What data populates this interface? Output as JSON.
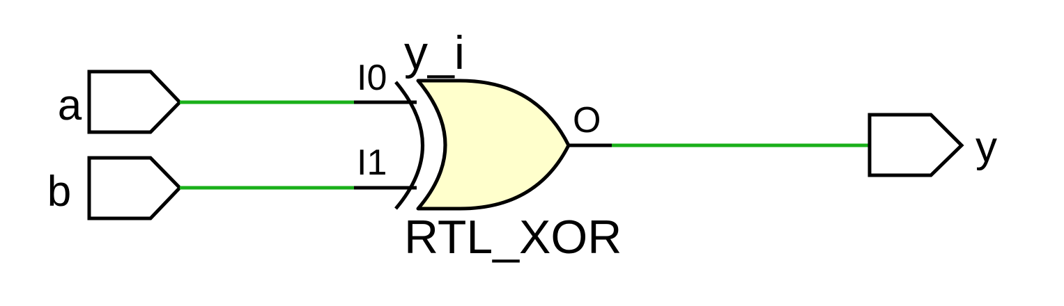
{
  "ports": {
    "a": {
      "label": "a",
      "direction": "input"
    },
    "b": {
      "label": "b",
      "direction": "input"
    },
    "y": {
      "label": "y",
      "direction": "output"
    }
  },
  "cell": {
    "instance_name": "y_i",
    "type_label": "RTL_XOR",
    "pins": {
      "i0": "I0",
      "i1": "I1",
      "o": "O"
    }
  },
  "colors": {
    "net": "#1ab01a",
    "gate_fill": "#ffffcc",
    "stroke": "#000000",
    "background": "#ffffff"
  }
}
